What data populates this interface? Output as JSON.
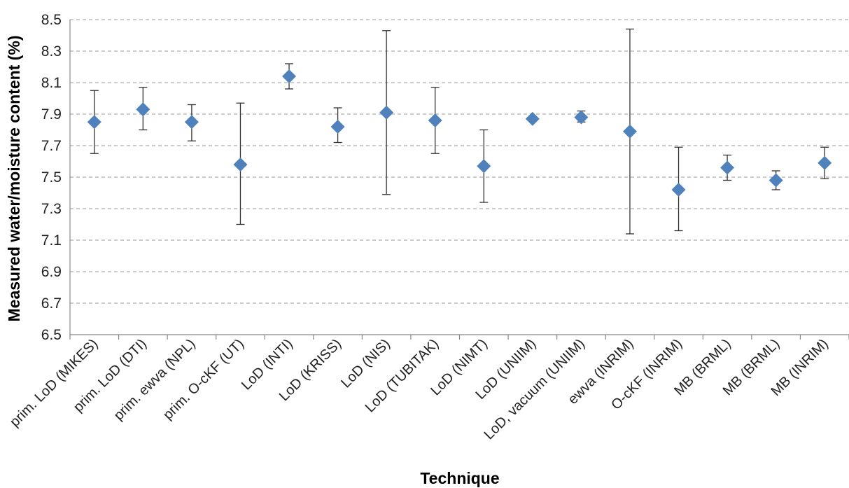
{
  "chart_data": {
    "type": "scatter",
    "title": "",
    "xlabel": "Technique",
    "ylabel": "Measured water/moisture content (%)",
    "ylim": [
      6.5,
      8.5
    ],
    "yticks": [
      "6.5",
      "6.7",
      "6.9",
      "7.1",
      "7.3",
      "7.5",
      "7.7",
      "7.9",
      "8.1",
      "8.3",
      "8.5"
    ],
    "grid": true,
    "marker_color": "#4f81bd",
    "categories": [
      "prim. LoD (MIKES)",
      "prim. LoD (DTI)",
      "prim. ewva (NPL)",
      "prim. O-cKF (UT)",
      "LoD (INTI)",
      "LoD (KRISS)",
      "LoD (NIS)",
      "LoD (TUBITAK)",
      "LoD (NIMT)",
      "LoD (UNIIM)",
      "LoD, vacuum (UNIIM)",
      "ewva (INRIM)",
      "O-cKF (INRIM)",
      "MB (BRML)",
      "MB (BRML)",
      "MB (INRIM)"
    ],
    "values": [
      7.85,
      7.93,
      7.85,
      7.58,
      8.14,
      7.82,
      7.91,
      7.86,
      7.57,
      7.87,
      7.88,
      7.79,
      7.42,
      7.56,
      7.48,
      7.59
    ],
    "error_low": [
      7.65,
      7.8,
      7.73,
      7.2,
      8.06,
      7.72,
      7.39,
      7.65,
      7.34,
      7.87,
      7.85,
      7.14,
      7.16,
      7.48,
      7.42,
      7.49
    ],
    "error_high": [
      8.05,
      8.07,
      7.96,
      7.97,
      8.22,
      7.94,
      8.43,
      8.07,
      7.8,
      7.87,
      7.92,
      8.44,
      7.69,
      7.64,
      7.54,
      7.69
    ]
  }
}
